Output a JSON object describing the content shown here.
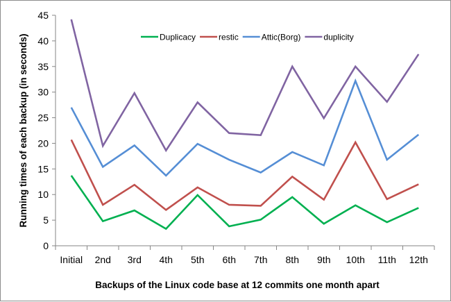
{
  "chart_data": {
    "type": "line",
    "title": "",
    "xlabel": "Backups of the Linux code base at 12 commits one month apart",
    "ylabel": "Running times of each backup  (in seconds)",
    "categories": [
      "Initial",
      "2nd",
      "3rd",
      "4th",
      "5th",
      "6th",
      "7th",
      "8th",
      "9th",
      "10th",
      "11th",
      "12th"
    ],
    "ylim": [
      0,
      45
    ],
    "yticks": [
      0,
      5,
      10,
      15,
      20,
      25,
      30,
      35,
      40,
      45
    ],
    "grid": false,
    "legend": "top-center",
    "series": [
      {
        "name": "Duplicacy",
        "color": "#00b050",
        "values": [
          13.7,
          4.8,
          6.9,
          3.3,
          9.9,
          3.8,
          5.1,
          9.5,
          4.3,
          7.9,
          4.6,
          7.4
        ]
      },
      {
        "name": "restic",
        "color": "#c0504d",
        "values": [
          20.7,
          8.0,
          11.9,
          7.0,
          11.4,
          8.0,
          7.8,
          13.5,
          9.0,
          20.2,
          9.1,
          12.0
        ]
      },
      {
        "name": "Attic(Borg)",
        "color": "#558ed5",
        "values": [
          27.0,
          15.4,
          19.6,
          13.7,
          19.9,
          16.8,
          14.3,
          18.3,
          15.7,
          32.2,
          16.8,
          21.7
        ]
      },
      {
        "name": "duplicity",
        "color": "#8064a2",
        "values": [
          44.2,
          19.5,
          29.8,
          18.6,
          28.0,
          22.0,
          21.6,
          35.0,
          24.9,
          35.0,
          28.1,
          37.4
        ]
      }
    ]
  }
}
